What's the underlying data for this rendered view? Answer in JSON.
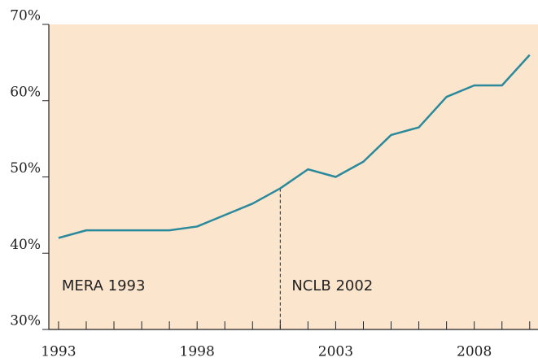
{
  "chart_data": {
    "type": "line",
    "x": [
      1993,
      1994,
      1995,
      1996,
      1997,
      1998,
      1999,
      2000,
      2001,
      2002,
      2003,
      2004,
      2005,
      2006,
      2007,
      2008,
      2009,
      2010
    ],
    "series": [
      {
        "color": "#2a8a9c",
        "values": [
          42,
          43,
          43,
          43,
          43,
          43.5,
          45,
          46.5,
          48.5,
          51,
          50,
          52,
          55.5,
          56.5,
          60.5,
          62,
          62,
          66
        ]
      }
    ],
    "xlim": [
      1992.65,
      2010.3
    ],
    "ylim": [
      30,
      70
    ],
    "xticks": [
      1993,
      1998,
      2003,
      2008
    ],
    "minor_xticks": [
      1994,
      1995,
      1996,
      1997,
      1999,
      2000,
      2001,
      2002,
      2004,
      2005,
      2006,
      2007,
      2009,
      2010
    ],
    "yticks": [
      {
        "value": 30,
        "label": "30%"
      },
      {
        "value": 40,
        "label": "40%"
      },
      {
        "value": 50,
        "label": "50%"
      },
      {
        "value": 60,
        "label": "60%"
      },
      {
        "value": 70,
        "label": "70%"
      }
    ],
    "background": "#fce5cd",
    "annotations": [
      {
        "text": "MERA 1993",
        "x": 1993
      },
      {
        "text": "NCLB 2002",
        "x": 2001,
        "dashed_line": true
      }
    ]
  }
}
